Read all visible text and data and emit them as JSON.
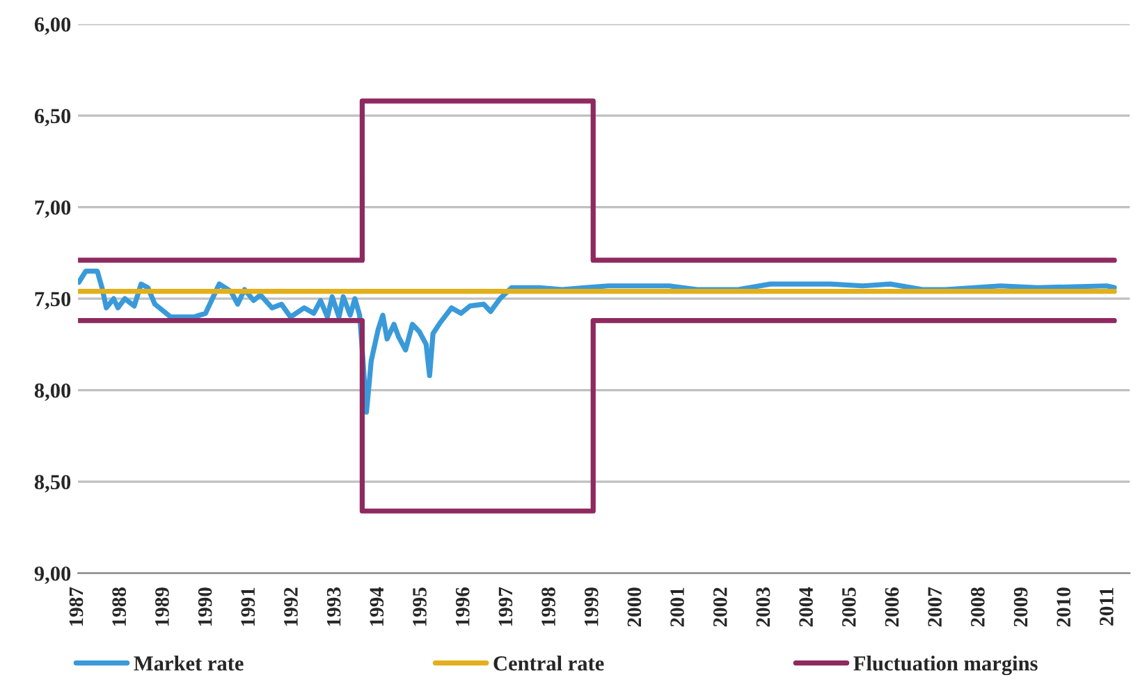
{
  "chart_data": {
    "type": "line",
    "xlim": [
      1987,
      2011.5
    ],
    "xticks": [
      1987,
      1988,
      1989,
      1990,
      1991,
      1992,
      1993,
      1994,
      1995,
      1996,
      1997,
      1998,
      1999,
      2000,
      2001,
      2002,
      2003,
      2004,
      2005,
      2006,
      2007,
      2008,
      2009,
      2010,
      2011
    ],
    "ylim": [
      9.0,
      6.0
    ],
    "yticks": [
      {
        "value": 6.0,
        "label": "6,00"
      },
      {
        "value": 6.5,
        "label": "6,50"
      },
      {
        "value": 7.0,
        "label": "7,00"
      },
      {
        "value": 7.5,
        "label": "7,50"
      },
      {
        "value": 8.0,
        "label": "8,00"
      },
      {
        "value": 8.5,
        "label": "8,50"
      },
      {
        "value": 9.0,
        "label": "9,00"
      }
    ],
    "grid": "y",
    "legend": "bottom",
    "series": [
      {
        "name": "Market rate",
        "color": "#3a9ad9",
        "x": [
          1987.02,
          1987.18,
          1987.45,
          1987.56,
          1987.66,
          1987.83,
          1987.93,
          1988.09,
          1988.31,
          1988.47,
          1988.63,
          1988.79,
          1989.16,
          1989.7,
          1989.97,
          1990.29,
          1990.56,
          1990.72,
          1990.88,
          1991.09,
          1991.25,
          1991.52,
          1991.74,
          1991.95,
          1992.27,
          1992.49,
          1992.65,
          1992.81,
          1992.92,
          1993.08,
          1993.18,
          1993.34,
          1993.45,
          1993.56,
          1993.61,
          1993.72,
          1993.83,
          1993.99,
          1994.1,
          1994.2,
          1994.36,
          1994.47,
          1994.63,
          1994.79,
          1994.95,
          1995.11,
          1995.19,
          1995.27,
          1995.44,
          1995.7,
          1995.92,
          1996.13,
          1996.45,
          1996.61,
          1996.83,
          1997.1,
          1997.74,
          1998.28,
          1998.81,
          1999.35,
          2000.77,
          2001.42,
          2002.38,
          2003.13,
          2004.53,
          2005.28,
          2005.92,
          2006.67,
          2007.21,
          2008.49,
          2009.35,
          2010.96,
          2011.14
        ],
        "values": [
          7.41,
          7.35,
          7.35,
          7.44,
          7.55,
          7.5,
          7.55,
          7.5,
          7.54,
          7.42,
          7.44,
          7.53,
          7.6,
          7.6,
          7.58,
          7.42,
          7.46,
          7.53,
          7.45,
          7.51,
          7.48,
          7.55,
          7.53,
          7.6,
          7.55,
          7.58,
          7.51,
          7.6,
          7.49,
          7.6,
          7.49,
          7.59,
          7.5,
          7.59,
          7.74,
          8.12,
          7.84,
          7.67,
          7.59,
          7.72,
          7.64,
          7.71,
          7.78,
          7.64,
          7.68,
          7.75,
          7.92,
          7.69,
          7.63,
          7.55,
          7.58,
          7.54,
          7.53,
          7.57,
          7.5,
          7.44,
          7.44,
          7.45,
          7.44,
          7.43,
          7.43,
          7.45,
          7.45,
          7.42,
          7.42,
          7.43,
          7.42,
          7.45,
          7.45,
          7.43,
          7.44,
          7.43,
          7.44
        ]
      },
      {
        "name": "Central rate",
        "color": "#e3b01c",
        "x": [
          1987,
          2011.14
        ],
        "values": [
          7.46,
          7.46
        ]
      },
      {
        "name": "Fluctuation margins",
        "color": "#8e2a5f",
        "x": [
          1987,
          1993.62,
          1993.62,
          1999.0,
          1999.0,
          2011.14
        ],
        "values": [
          7.29,
          7.29,
          6.42,
          6.42,
          7.29,
          7.29
        ]
      },
      {
        "color": "#8e2a5f",
        "x": [
          1987,
          1993.62,
          1993.62,
          1999.0,
          1999.0,
          2011.14
        ],
        "values": [
          7.62,
          7.62,
          8.66,
          8.66,
          7.62,
          7.62
        ]
      }
    ]
  }
}
